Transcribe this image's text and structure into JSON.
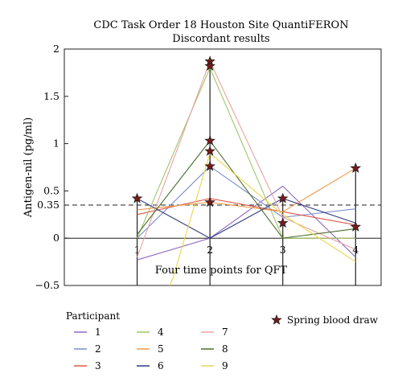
{
  "chart_data": {
    "type": "line",
    "title_lines": [
      "CDC Task Order 18 Houston Site QuantiFERON",
      "Discordant results"
    ],
    "xlabel": "Four time points for QFT",
    "ylabel": "Antigen-nil (pg/ml)",
    "x": [
      1,
      2,
      3,
      4
    ],
    "x_tick_labels": [
      "1",
      "2",
      "3",
      "4"
    ],
    "xlim": [
      0.0,
      4.35
    ],
    "ylim": [
      -0.5,
      2
    ],
    "y_ticks": [
      -0.5,
      0,
      0.35,
      0.5,
      1,
      1.5,
      2
    ],
    "y_tick_labels": [
      "−0.5",
      "0",
      "0.35",
      "0.5",
      "1",
      "1.5",
      "2"
    ],
    "threshold": 0.35,
    "grid": false,
    "legend_title": "Participant",
    "star_legend_label": "Spring blood draw",
    "series": [
      {
        "name": "1",
        "color": "#8e6bbf",
        "values": [
          -0.23,
          0.0,
          0.55,
          -0.2
        ]
      },
      {
        "name": "2",
        "color": "#7b8dcc",
        "values": [
          0.0,
          0.76,
          0.22,
          0.31
        ]
      },
      {
        "name": "3",
        "color": "#e0584a",
        "values": [
          0.25,
          0.42,
          0.28,
          0.14
        ]
      },
      {
        "name": "4",
        "color": "#a3c46a",
        "values": [
          0.0,
          1.8,
          0.0,
          0.0
        ]
      },
      {
        "name": "5",
        "color": "#ee9a4b",
        "values": [
          0.3,
          0.38,
          0.28,
          0.74
        ]
      },
      {
        "name": "6",
        "color": "#2f3a7e",
        "values": [
          0.42,
          0.0,
          0.42,
          0.16
        ]
      },
      {
        "name": "7",
        "color": "#e8a3a3",
        "values": [
          -0.2,
          1.87,
          0.22,
          -0.12
        ]
      },
      {
        "name": "8",
        "color": "#4a6e2a",
        "values": [
          0.04,
          1.03,
          0.0,
          0.1
        ]
      },
      {
        "name": "9",
        "color": "#e8d84a",
        "values": [
          null,
          0.9,
          0.25,
          -0.25
        ]
      }
    ],
    "spring_draws": [
      {
        "x": 1,
        "y": 0.42
      },
      {
        "x": 2,
        "y": 1.87
      },
      {
        "x": 2,
        "y": 1.82
      },
      {
        "x": 2,
        "y": 1.03
      },
      {
        "x": 2,
        "y": 0.92
      },
      {
        "x": 2,
        "y": 0.76
      },
      {
        "x": 2,
        "y": 0.38
      },
      {
        "x": 3,
        "y": 0.42
      },
      {
        "x": 3,
        "y": 0.16
      },
      {
        "x": 4,
        "y": 0.74
      },
      {
        "x": 4,
        "y": 0.12
      }
    ],
    "extra_segments": [
      {
        "color": "#e8d84a",
        "from": [
          1.45,
          -0.5
        ],
        "to": [
          1.5,
          -0.4
        ]
      }
    ],
    "drop_lines": [
      {
        "x": 1,
        "y": 0.42
      },
      {
        "x": 2,
        "y": 1.87
      },
      {
        "x": 3,
        "y": 0.42
      },
      {
        "x": 4,
        "y": 0.74
      }
    ]
  }
}
